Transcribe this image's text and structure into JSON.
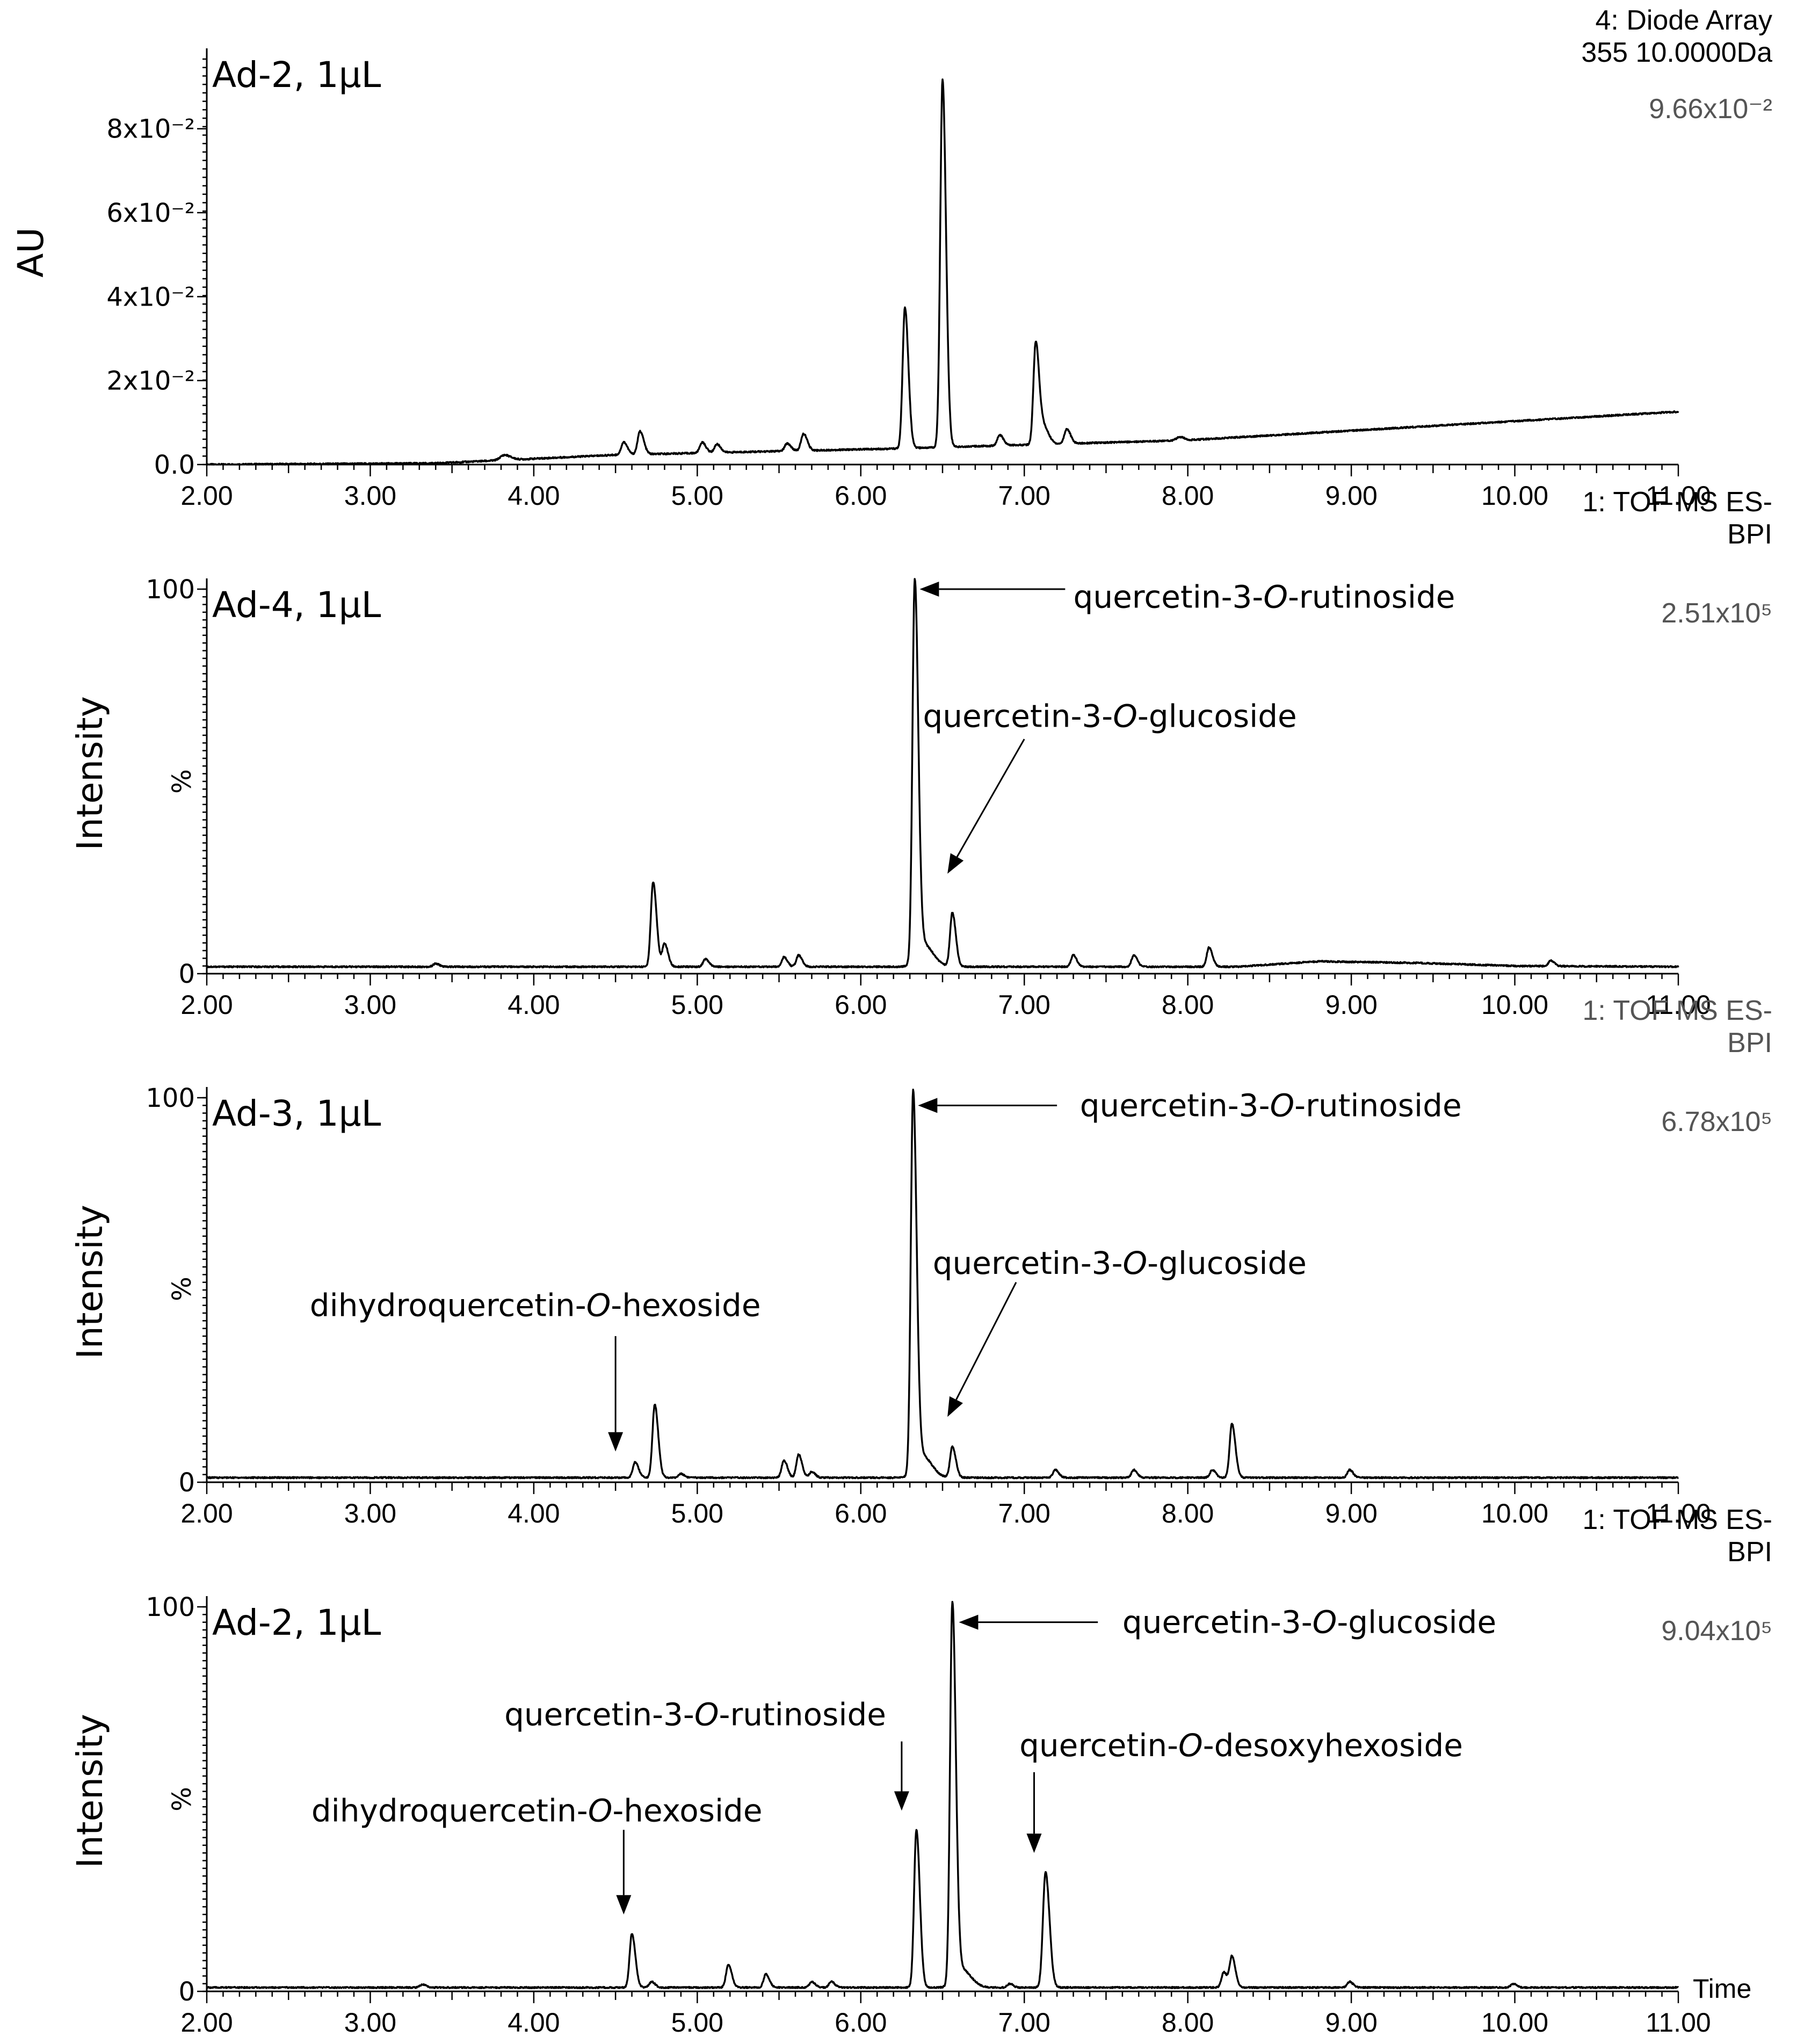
{
  "chart_data": [
    {
      "type": "line",
      "panel_label": "Ad-2, 1μL",
      "instrument": [
        "4: Diode Array",
        "355 10.0000Da"
      ],
      "scale_value": "9.66x10⁻²",
      "ylabel": "AU",
      "ytick_labels": [
        "0.0",
        "2x10⁻²",
        "4x10⁻²",
        "6x10⁻²",
        "8x10⁻²"
      ],
      "yticks": [
        0,
        0.02,
        0.04,
        0.06,
        0.08
      ],
      "ylim": [
        0,
        0.0966
      ],
      "xlim": [
        2.0,
        11.0
      ],
      "xtick_labels": [
        "2.00",
        "3.00",
        "4.00",
        "5.00",
        "6.00",
        "7.00",
        "8.00",
        "9.00",
        "10.00",
        "11.00"
      ],
      "baseline": [
        [
          2.0,
          0.0
        ],
        [
          3.4,
          0.0003
        ],
        [
          4.5,
          0.0023
        ],
        [
          6.2,
          0.0038
        ],
        [
          8.0,
          0.0058
        ],
        [
          11.0,
          0.0126
        ]
      ],
      "peaks": [
        {
          "t": 3.82,
          "h": 0.0012,
          "w": 0.025
        },
        {
          "t": 4.55,
          "h": 0.003,
          "w": 0.015
        },
        {
          "t": 4.65,
          "h": 0.0055,
          "w": 0.015
        },
        {
          "t": 5.03,
          "h": 0.0025,
          "w": 0.015
        },
        {
          "t": 5.12,
          "h": 0.002,
          "w": 0.015
        },
        {
          "t": 5.55,
          "h": 0.0018,
          "w": 0.015
        },
        {
          "t": 5.65,
          "h": 0.004,
          "w": 0.015
        },
        {
          "t": 6.27,
          "h": 0.0335,
          "w": 0.014
        },
        {
          "t": 6.5,
          "h": 0.0875,
          "w": 0.014
        },
        {
          "t": 6.85,
          "h": 0.0025,
          "w": 0.015
        },
        {
          "t": 7.07,
          "h": 0.0245,
          "w": 0.014
        },
        {
          "t": 7.12,
          "h": 0.004,
          "w": 0.02
        },
        {
          "t": 7.26,
          "h": 0.0035,
          "w": 0.015
        },
        {
          "t": 7.95,
          "h": 0.0008,
          "w": 0.02
        }
      ],
      "annotations": []
    },
    {
      "type": "line",
      "panel_label": "Ad-4, 1μL",
      "instrument": [
        "1: TOF MS ES-",
        "BPI"
      ],
      "scale_value": "2.51x10⁵",
      "ylabel": "Intensity",
      "ylabel2": "%",
      "ytick_labels": [
        "0",
        "100"
      ],
      "yticks": [
        0,
        100
      ],
      "ylim": [
        0,
        100
      ],
      "xlim": [
        2.0,
        11.0
      ],
      "xtick_labels": [
        "2.00",
        "3.00",
        "4.00",
        "5.00",
        "6.00",
        "7.00",
        "8.00",
        "9.00",
        "10.00",
        "11.00"
      ],
      "baseline": [
        [
          2.0,
          1.8
        ],
        [
          8.3,
          1.8
        ],
        [
          8.8,
          3.2
        ],
        [
          9.4,
          2.8
        ],
        [
          10.0,
          2.0
        ],
        [
          11.0,
          1.8
        ]
      ],
      "peaks": [
        {
          "t": 3.4,
          "h": 0.8,
          "w": 0.015
        },
        {
          "t": 4.73,
          "h": 22,
          "w": 0.014
        },
        {
          "t": 4.8,
          "h": 6,
          "w": 0.014
        },
        {
          "t": 5.05,
          "h": 2,
          "w": 0.014
        },
        {
          "t": 5.53,
          "h": 2.5,
          "w": 0.014
        },
        {
          "t": 5.62,
          "h": 3,
          "w": 0.014
        },
        {
          "t": 6.33,
          "h": 98,
          "w": 0.014
        },
        {
          "t": 6.38,
          "h": 6,
          "w": 0.04
        },
        {
          "t": 6.56,
          "h": 14,
          "w": 0.014
        },
        {
          "t": 7.3,
          "h": 3,
          "w": 0.014
        },
        {
          "t": 7.67,
          "h": 3,
          "w": 0.014
        },
        {
          "t": 8.13,
          "h": 5,
          "w": 0.014
        },
        {
          "t": 10.22,
          "h": 1.5,
          "w": 0.014
        }
      ],
      "annotations": [
        {
          "text_pre": "quercetin-3-",
          "text_ital": "O",
          "text_post": "-rutinoside",
          "label_t": 7.3,
          "label_y": 98,
          "tip_t": 6.36,
          "tip_y": 100,
          "kind": "left",
          "line_from_t": 7.25
        },
        {
          "text_pre": "quercetin-3-",
          "text_ital": "O",
          "text_post": "-glucoside",
          "label_t": 6.38,
          "label_y": 67,
          "tip_t": 6.53,
          "tip_y": 26,
          "kind": "diag",
          "line_from_t": 7.0,
          "line_from_y": 61
        }
      ]
    },
    {
      "type": "line",
      "panel_label": "Ad-3, 1μL",
      "instrument": [
        "1: TOF MS ES-",
        "BPI"
      ],
      "instrument_grey": true,
      "scale_value": "6.78x10⁵",
      "ylabel": "Intensity",
      "ylabel2": "%",
      "ytick_labels": [
        "0",
        "100"
      ],
      "yticks": [
        0,
        100
      ],
      "ylim": [
        0,
        100
      ],
      "xlim": [
        2.0,
        11.0
      ],
      "xtick_labels": [
        "2.00",
        "3.00",
        "4.00",
        "5.00",
        "6.00",
        "7.00",
        "8.00",
        "9.00",
        "10.00",
        "11.00"
      ],
      "baseline": [
        [
          2.0,
          1.2
        ],
        [
          11.0,
          1.2
        ]
      ],
      "peaks": [
        {
          "t": 4.62,
          "h": 4,
          "w": 0.014
        },
        {
          "t": 4.74,
          "h": 19,
          "w": 0.014
        },
        {
          "t": 4.9,
          "h": 1,
          "w": 0.014
        },
        {
          "t": 5.53,
          "h": 4.5,
          "w": 0.014
        },
        {
          "t": 5.62,
          "h": 6,
          "w": 0.014
        },
        {
          "t": 5.7,
          "h": 1.5,
          "w": 0.014
        },
        {
          "t": 6.32,
          "h": 98,
          "w": 0.014
        },
        {
          "t": 6.37,
          "h": 6,
          "w": 0.04
        },
        {
          "t": 6.56,
          "h": 8,
          "w": 0.014
        },
        {
          "t": 7.19,
          "h": 2,
          "w": 0.014
        },
        {
          "t": 7.67,
          "h": 2,
          "w": 0.014
        },
        {
          "t": 8.15,
          "h": 2,
          "w": 0.014
        },
        {
          "t": 8.27,
          "h": 14,
          "w": 0.014
        },
        {
          "t": 8.99,
          "h": 2,
          "w": 0.014
        }
      ],
      "annotations": [
        {
          "text_pre": "quercetin-3-",
          "text_ital": "O",
          "text_post": "-rutinoside",
          "label_t": 7.34,
          "label_y": 98,
          "tip_t": 6.35,
          "tip_y": 98,
          "kind": "left",
          "line_from_t": 7.2
        },
        {
          "text_pre": "quercetin-3-",
          "text_ital": "O",
          "text_post": "-glucoside",
          "label_t": 6.44,
          "label_y": 57,
          "tip_t": 6.53,
          "tip_y": 17,
          "kind": "diag",
          "line_from_t": 6.95,
          "line_from_y": 52
        },
        {
          "text_pre": "dihydroquercetin-",
          "text_ital": "O",
          "text_post": "-hexoside",
          "label_t": 2.63,
          "label_y": 46,
          "tip_t": 4.5,
          "tip_y": 8,
          "kind": "down",
          "line_from_y": 38
        }
      ]
    },
    {
      "type": "line",
      "panel_label": "Ad-2, 1μL",
      "instrument": [
        "1: TOF MS ES-",
        "BPI"
      ],
      "scale_value": "9.04x10⁵",
      "ylabel": "Intensity",
      "ylabel2": "%",
      "ytick_labels": [
        "0",
        "100"
      ],
      "yticks": [
        0,
        100
      ],
      "ylim": [
        0,
        100
      ],
      "xlim": [
        2.0,
        11.0
      ],
      "xtick_labels": [
        "2.00",
        "3.00",
        "4.00",
        "5.00",
        "6.00",
        "7.00",
        "8.00",
        "9.00",
        "10.00",
        "11.00"
      ],
      "xlabel": "Time",
      "baseline": [
        [
          2.0,
          1.0
        ],
        [
          11.0,
          1.0
        ]
      ],
      "peaks": [
        {
          "t": 3.32,
          "h": 0.8,
          "w": 0.015
        },
        {
          "t": 4.6,
          "h": 14,
          "w": 0.014
        },
        {
          "t": 4.72,
          "h": 1.5,
          "w": 0.014
        },
        {
          "t": 5.19,
          "h": 6,
          "w": 0.014
        },
        {
          "t": 5.42,
          "h": 3.5,
          "w": 0.014
        },
        {
          "t": 5.7,
          "h": 1.5,
          "w": 0.014
        },
        {
          "t": 5.82,
          "h": 1.5,
          "w": 0.014
        },
        {
          "t": 6.34,
          "h": 41,
          "w": 0.014
        },
        {
          "t": 6.56,
          "h": 98,
          "w": 0.014
        },
        {
          "t": 6.61,
          "h": 5,
          "w": 0.04
        },
        {
          "t": 6.91,
          "h": 1,
          "w": 0.014
        },
        {
          "t": 7.13,
          "h": 30,
          "w": 0.016
        },
        {
          "t": 8.22,
          "h": 4,
          "w": 0.014
        },
        {
          "t": 8.27,
          "h": 8,
          "w": 0.014
        },
        {
          "t": 8.99,
          "h": 1.5,
          "w": 0.014
        },
        {
          "t": 9.99,
          "h": 1,
          "w": 0.014
        }
      ],
      "annotations": [
        {
          "text_pre": "quercetin-3-",
          "text_ital": "O",
          "text_post": "-glucoside",
          "label_t": 7.6,
          "label_y": 96,
          "tip_t": 6.6,
          "tip_y": 96,
          "kind": "left",
          "line_from_t": 7.45
        },
        {
          "text_pre": "quercetin-3-",
          "text_ital": "O",
          "text_post": "-rutinoside",
          "label_t": 3.82,
          "label_y": 72,
          "tip_t": 6.25,
          "tip_y": 47,
          "kind": "down",
          "line_from_y": 65
        },
        {
          "text_pre": "quercetin-",
          "text_ital": "O",
          "text_post": "-desoxyhexoside",
          "label_t": 6.97,
          "label_y": 64,
          "tip_t": 7.06,
          "tip_y": 36,
          "kind": "down",
          "line_from_y": 57
        },
        {
          "text_pre": "dihydroquercetin-",
          "text_ital": "O",
          "text_post": "-hexoside",
          "label_t": 2.64,
          "label_y": 47,
          "tip_t": 4.55,
          "tip_y": 20,
          "kind": "down",
          "line_from_y": 42
        }
      ]
    }
  ]
}
